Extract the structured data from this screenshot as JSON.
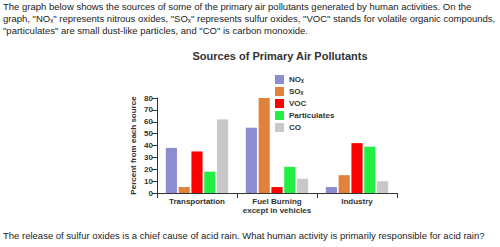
{
  "header": {
    "text": "The graph below shows the sources of some of the primary air pollutants generated by human activities. On the graph, \"NOₓ\" represents nitrous oxides, \"SOₓ\" represents sulfur oxides, \"VOC\" stands for volatile organic compounds, \"particulates\" are small dust-like particles, and \"CO\" is carbon monoxide."
  },
  "chart_data": {
    "type": "bar",
    "title": "Sources of Primary Air Pollutants",
    "y_label": "Percent from each source",
    "categories": [
      "Transportation",
      "Fuel Burning\nexcept in vehicles",
      "Industry"
    ],
    "series": [
      {
        "name": "NOₓ",
        "color": "#8c8cd0",
        "values": [
          38,
          55,
          5
        ]
      },
      {
        "name": "SOₓ",
        "color": "#e0823c",
        "values": [
          5,
          80,
          15
        ]
      },
      {
        "name": "VOC",
        "color": "#ff0000",
        "values": [
          35,
          5,
          42
        ]
      },
      {
        "name": "Particulates",
        "color": "#22ee44",
        "values": [
          18,
          22,
          39
        ]
      },
      {
        "name": "CO",
        "color": "#c8c8c8",
        "values": [
          62,
          12,
          10
        ]
      }
    ],
    "ylim": [
      0,
      80
    ],
    "yticks": [
      0,
      10,
      20,
      30,
      40,
      50,
      60,
      70,
      80
    ],
    "grid": false,
    "legend": "top-right"
  },
  "footer": {
    "text": "The release of sulfur oxides is a chief cause of acid rain. What human activity is primarily responsible for acid rain?"
  }
}
